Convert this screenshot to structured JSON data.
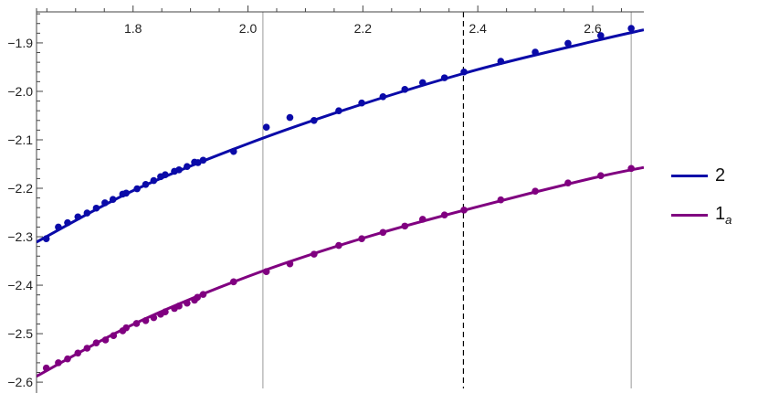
{
  "chart_data": {
    "type": "scatter",
    "title": "",
    "xlabel": "",
    "ylabel": "",
    "xlim": [
      1.632,
      2.689
    ],
    "ylim": [
      -2.613,
      -1.836
    ],
    "x_ticks": [
      1.8,
      2.0,
      2.2,
      2.4,
      2.6
    ],
    "x_tick_labels": [
      "1.8",
      "2.0",
      "2.2",
      "2.4",
      "2.6"
    ],
    "y_ticks": [
      -1.9,
      -2.0,
      -2.1,
      -2.2,
      -2.3,
      -2.4,
      -2.5,
      -2.6
    ],
    "y_tick_labels": [
      "−1.9",
      "−2.0",
      "−2.1",
      "−2.2",
      "−2.3",
      "−2.4",
      "−2.5",
      "−2.6"
    ],
    "x_axis_position": "top",
    "grid": false,
    "legend_position": "right",
    "vertical_lines": [
      {
        "x": 2.026,
        "style": "solid",
        "color": "#aaaaaa"
      },
      {
        "x": 2.375,
        "style": "dashed",
        "color": "#000000"
      },
      {
        "x": 2.667,
        "style": "solid",
        "color": "#aaaaaa"
      }
    ],
    "series": [
      {
        "name": "2",
        "color": "#0a0aa8",
        "points": [
          [
            1.649,
            -2.304
          ],
          [
            1.67,
            -2.28
          ],
          [
            1.686,
            -2.271
          ],
          [
            1.704,
            -2.259
          ],
          [
            1.72,
            -2.251
          ],
          [
            1.736,
            -2.241
          ],
          [
            1.751,
            -2.23
          ],
          [
            1.765,
            -2.223
          ],
          [
            1.782,
            -2.212
          ],
          [
            1.788,
            -2.21
          ],
          [
            1.807,
            -2.201
          ],
          [
            1.822,
            -2.192
          ],
          [
            1.836,
            -2.184
          ],
          [
            1.848,
            -2.176
          ],
          [
            1.856,
            -2.172
          ],
          [
            1.872,
            -2.165
          ],
          [
            1.88,
            -2.162
          ],
          [
            1.894,
            -2.155
          ],
          [
            1.907,
            -2.146
          ],
          [
            1.913,
            -2.147
          ],
          [
            1.922,
            -2.142
          ],
          [
            1.975,
            -2.124
          ],
          [
            2.032,
            -2.074
          ],
          [
            2.073,
            -2.054
          ],
          [
            2.115,
            -2.06
          ],
          [
            2.158,
            -2.04
          ],
          [
            2.198,
            -2.024
          ],
          [
            2.235,
            -2.011
          ],
          [
            2.273,
            -1.996
          ],
          [
            2.304,
            -1.982
          ],
          [
            2.342,
            -1.972
          ],
          [
            2.376,
            -1.96
          ],
          [
            2.44,
            -1.938
          ],
          [
            2.5,
            -1.919
          ],
          [
            2.557,
            -1.901
          ],
          [
            2.614,
            -1.885
          ],
          [
            2.667,
            -1.87
          ]
        ],
        "fit": [
          [
            1.632,
            -2.311
          ],
          [
            1.8,
            -2.205
          ],
          [
            2.0,
            -2.108
          ],
          [
            2.2,
            -2.026
          ],
          [
            2.4,
            -1.955
          ],
          [
            2.6,
            -1.897
          ],
          [
            2.689,
            -1.873
          ]
        ]
      },
      {
        "name": "1a",
        "label_main": "1",
        "label_sub": "a",
        "color": "#800080",
        "points": [
          [
            1.649,
            -2.571
          ],
          [
            1.67,
            -2.56
          ],
          [
            1.686,
            -2.552
          ],
          [
            1.704,
            -2.54
          ],
          [
            1.72,
            -2.53
          ],
          [
            1.736,
            -2.519
          ],
          [
            1.752,
            -2.513
          ],
          [
            1.766,
            -2.504
          ],
          [
            1.782,
            -2.494
          ],
          [
            1.788,
            -2.488
          ],
          [
            1.806,
            -2.479
          ],
          [
            1.822,
            -2.473
          ],
          [
            1.836,
            -2.467
          ],
          [
            1.848,
            -2.46
          ],
          [
            1.856,
            -2.455
          ],
          [
            1.872,
            -2.448
          ],
          [
            1.88,
            -2.443
          ],
          [
            1.894,
            -2.437
          ],
          [
            1.907,
            -2.431
          ],
          [
            1.912,
            -2.425
          ],
          [
            1.922,
            -2.419
          ],
          [
            1.975,
            -2.393
          ],
          [
            2.032,
            -2.372
          ],
          [
            2.073,
            -2.356
          ],
          [
            2.115,
            -2.336
          ],
          [
            2.158,
            -2.318
          ],
          [
            2.198,
            -2.304
          ],
          [
            2.235,
            -2.291
          ],
          [
            2.273,
            -2.278
          ],
          [
            2.304,
            -2.264
          ],
          [
            2.342,
            -2.255
          ],
          [
            2.376,
            -2.245
          ],
          [
            2.44,
            -2.224
          ],
          [
            2.5,
            -2.206
          ],
          [
            2.557,
            -2.189
          ],
          [
            2.614,
            -2.174
          ],
          [
            2.667,
            -2.159
          ]
        ],
        "fit": [
          [
            1.632,
            -2.588
          ],
          [
            1.8,
            -2.481
          ],
          [
            2.0,
            -2.382
          ],
          [
            2.2,
            -2.303
          ],
          [
            2.4,
            -2.238
          ],
          [
            2.6,
            -2.179
          ],
          [
            2.689,
            -2.157
          ]
        ]
      }
    ]
  }
}
